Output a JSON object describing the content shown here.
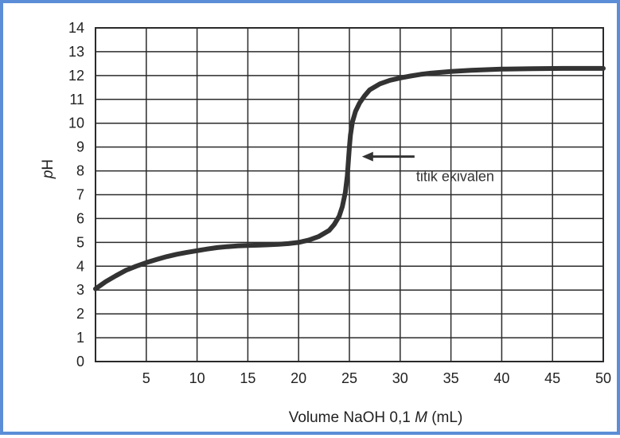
{
  "colors": {
    "border": "#5b8ed6",
    "grid": "#2b2b2b",
    "curve": "#333333",
    "text": "#222222"
  },
  "chart_data": {
    "type": "line",
    "title": "",
    "xlabel": "Volume NaOH 0,1 M (mL)",
    "xlabel_parts": [
      "Volume NaOH 0,1 ",
      "M",
      " (mL)"
    ],
    "ylabel": "pH",
    "ylabel_parts": [
      "p",
      "H"
    ],
    "xlim": [
      0,
      50
    ],
    "ylim": [
      0,
      14
    ],
    "grid": true,
    "x_ticks": [
      5,
      10,
      15,
      20,
      25,
      30,
      35,
      40,
      45,
      50
    ],
    "y_ticks": [
      0,
      1,
      2,
      3,
      4,
      5,
      6,
      7,
      8,
      9,
      10,
      11,
      12,
      13,
      14
    ],
    "series": [
      {
        "x": [
          0,
          1,
          2,
          3,
          4,
          5,
          6,
          7,
          8,
          9,
          10,
          11,
          12,
          13,
          14,
          15,
          16,
          17,
          18,
          19,
          20,
          21,
          22,
          23,
          23.5,
          24,
          24.3,
          24.6,
          24.8,
          24.9,
          25.0,
          25.1,
          25.3,
          25.6,
          26,
          26.5,
          27,
          28,
          29,
          30,
          31,
          32,
          33,
          35,
          37,
          40,
          43,
          46,
          50
        ],
        "y": [
          3.05,
          3.35,
          3.6,
          3.83,
          4.0,
          4.15,
          4.28,
          4.4,
          4.5,
          4.58,
          4.65,
          4.72,
          4.78,
          4.82,
          4.85,
          4.87,
          4.88,
          4.9,
          4.92,
          4.95,
          5.0,
          5.1,
          5.25,
          5.5,
          5.75,
          6.1,
          6.5,
          7.1,
          7.8,
          8.4,
          9.0,
          9.5,
          10.05,
          10.5,
          10.85,
          11.15,
          11.4,
          11.65,
          11.8,
          11.9,
          11.98,
          12.05,
          12.1,
          12.17,
          12.22,
          12.27,
          12.29,
          12.3,
          12.3
        ]
      }
    ],
    "annotations": [
      {
        "text": "titik ekivalen",
        "x": 25.3,
        "y": 8.6
      }
    ]
  }
}
